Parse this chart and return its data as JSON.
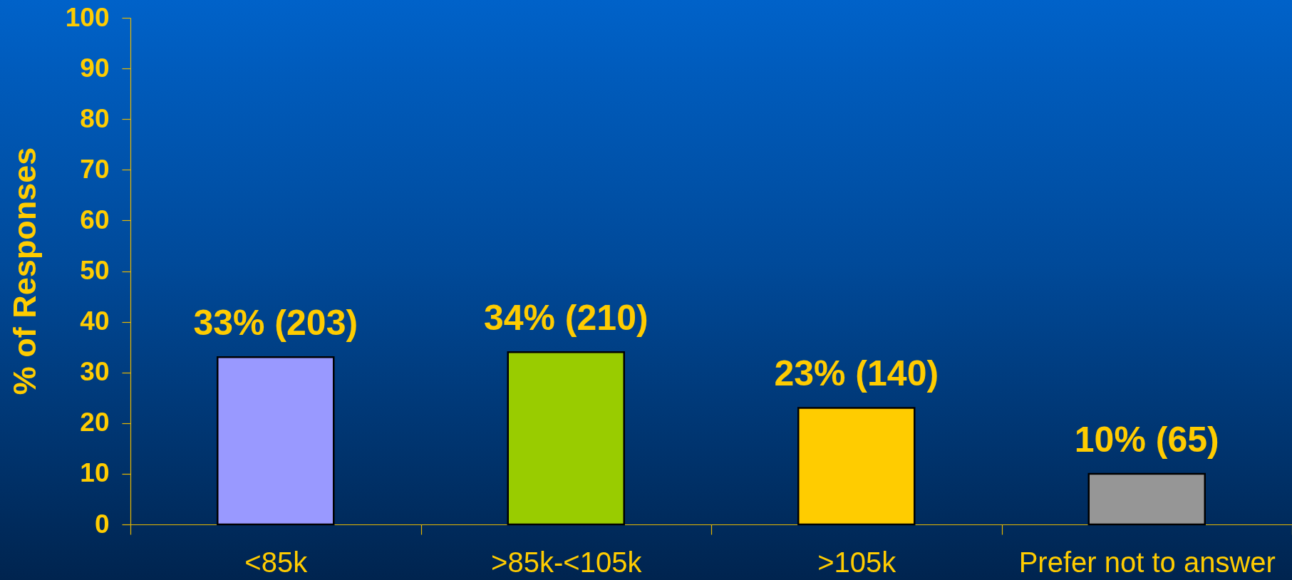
{
  "chart_data": {
    "type": "bar",
    "ylabel": "% of Responses",
    "categories": [
      "<85k",
      ">85k-<105k",
      ">105k",
      "Prefer not to answer"
    ],
    "values": [
      33,
      34,
      23,
      10
    ],
    "colors": [
      "#9999ff",
      "#99cc00",
      "#ffcc00",
      "#969696"
    ],
    "value_labels": [
      "33% (203)",
      "34% (210)",
      "23% (140)",
      "10% (65)"
    ],
    "ylim": [
      0,
      100
    ],
    "yticks": [
      0,
      10,
      20,
      30,
      40,
      50,
      60,
      70,
      80,
      90,
      100
    ]
  }
}
